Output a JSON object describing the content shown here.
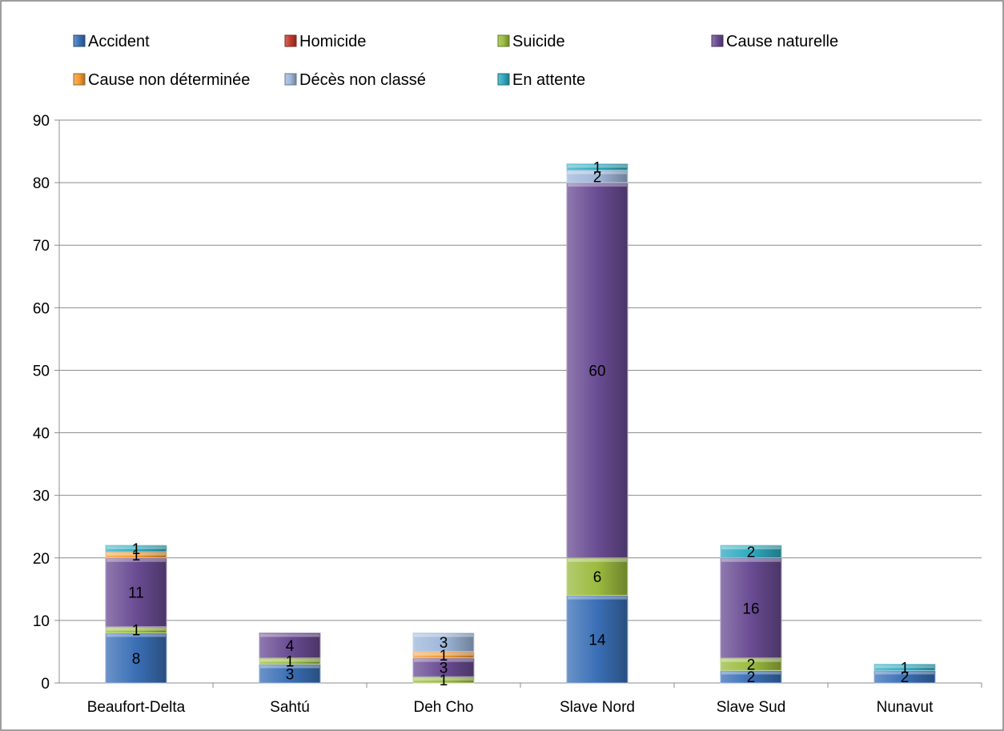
{
  "chart_data": {
    "type": "bar",
    "stacked": true,
    "title": "",
    "xlabel": "",
    "ylabel": "",
    "ylim": [
      0,
      90
    ],
    "yticks": [
      0,
      10,
      20,
      30,
      40,
      50,
      60,
      70,
      80,
      90
    ],
    "grid": true,
    "legend_position": "top",
    "categories": [
      "Beaufort-Delta",
      "Sahtú",
      "Deh Cho",
      "Slave Nord",
      "Slave Sud",
      "Nunavut"
    ],
    "series": [
      {
        "name": "Accident",
        "color": "#3a6fb6",
        "values": [
          8,
          3,
          0,
          14,
          2,
          2
        ]
      },
      {
        "name": "Homicide",
        "color": "#c0392b",
        "values": [
          0,
          0,
          0,
          0,
          0,
          0
        ]
      },
      {
        "name": "Suicide",
        "color": "#9bbb3f",
        "values": [
          1,
          1,
          1,
          6,
          2,
          0
        ]
      },
      {
        "name": "Cause naturelle",
        "color": "#6a4c93",
        "values": [
          11,
          4,
          3,
          60,
          16,
          0
        ]
      },
      {
        "name": "Cause non déterminée",
        "color": "#f39a32",
        "values": [
          1,
          0,
          1,
          0,
          0,
          0
        ]
      },
      {
        "name": "Décès non classé",
        "color": "#9fb7d9",
        "values": [
          0,
          0,
          3,
          2,
          0,
          0
        ]
      },
      {
        "name": "En attente",
        "color": "#2eaabf",
        "values": [
          1,
          0,
          0,
          1,
          2,
          1
        ]
      }
    ]
  }
}
